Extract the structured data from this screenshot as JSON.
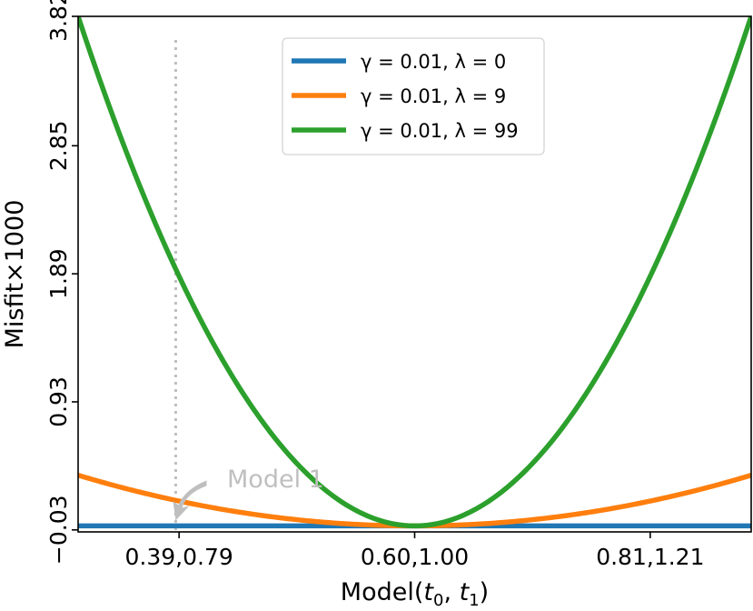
{
  "chart_data": {
    "type": "line",
    "xlabel": "Model(t₀, t₁)",
    "ylabel": "Misfit×1000",
    "x_ticks": [
      {
        "value": 0.39,
        "label": "0.39,0.79"
      },
      {
        "value": 0.6,
        "label": "0.60,1.00"
      },
      {
        "value": 0.81,
        "label": "0.81,1.21"
      }
    ],
    "y_ticks": [
      {
        "value": -0.03,
        "label": "−0.03"
      },
      {
        "value": 0.93,
        "label": "0.93"
      },
      {
        "value": 1.89,
        "label": "1.89"
      },
      {
        "value": 2.85,
        "label": "2.85"
      },
      {
        "value": 3.82,
        "label": "3.82"
      }
    ],
    "xlim": [
      0.3,
      0.9
    ],
    "ylim": [
      -0.045,
      3.82
    ],
    "grid": false,
    "legend_position": "top-center",
    "series": [
      {
        "name": "γ = 0.01, λ = 0",
        "color": "#1f77b4",
        "min_x": 0.6,
        "min_y": 0.0,
        "y_at_xmin": 0.0,
        "y_at_xmax": 0.0
      },
      {
        "name": "γ = 0.01, λ = 9",
        "color": "#ff7f0e",
        "min_x": 0.6,
        "min_y": 0.0,
        "y_at_xmin": 0.38,
        "y_at_xmax": 0.38
      },
      {
        "name": "γ = 0.01, λ = 99",
        "color": "#2ca02c",
        "min_x": 0.6,
        "min_y": 0.0,
        "y_at_xmin": 3.82,
        "y_at_xmax": 3.82
      }
    ],
    "vline": {
      "x": 0.387,
      "color": "#bfbfbf",
      "style": "dotted"
    },
    "annotation": {
      "text": "Model 1",
      "target_x": 0.387,
      "target_y": 0.0,
      "color": "#bfbfbf"
    }
  }
}
